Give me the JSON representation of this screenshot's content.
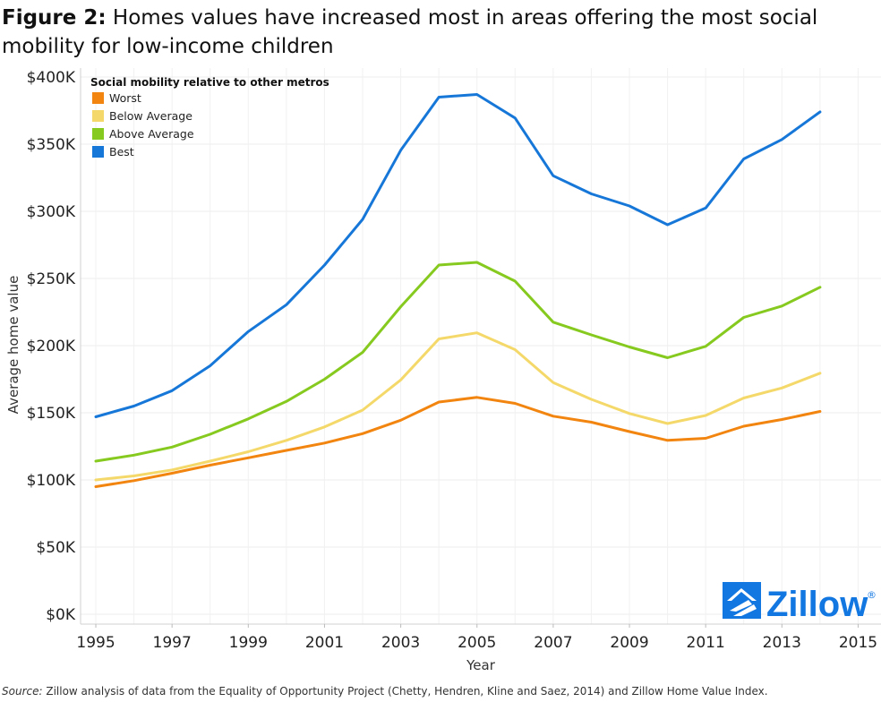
{
  "title": {
    "prefix": "Figure 2:",
    "text": "Homes values have increased most in areas offering the most social mobility for low-income children"
  },
  "source": {
    "label": "Source:",
    "text": "Zillow analysis of data from the Equality of Opportunity Project (Chetty, Hendren, Kline and Saez, 2014) and Zillow Home Value Index."
  },
  "logo": {
    "text": "Zillow",
    "mark": "®",
    "color": "#1277e1"
  },
  "chart_data": {
    "type": "line",
    "title": "Homes values have increased most in areas offering the most social mobility for low-income children",
    "xlabel": "Year",
    "ylabel": "Average home value",
    "xlim": [
      1994.6,
      2015.6
    ],
    "ylim": [
      0,
      400000
    ],
    "xticks": [
      1995,
      1997,
      1999,
      2001,
      2003,
      2005,
      2007,
      2009,
      2011,
      2013,
      2015
    ],
    "xtick_labels": [
      "1995",
      "1997",
      "1999",
      "2001",
      "2003",
      "2005",
      "2007",
      "2009",
      "2011",
      "2013",
      "2015"
    ],
    "yticks": [
      0,
      50000,
      100000,
      150000,
      200000,
      250000,
      300000,
      350000,
      400000
    ],
    "ytick_labels": [
      "$0K",
      "$50K",
      "$100K",
      "$150K",
      "$200K",
      "$250K",
      "$300K",
      "$350K",
      "$400K"
    ],
    "grid": true,
    "legend": {
      "title": "Social mobility relative to other metros",
      "position": "top-left"
    },
    "x": [
      1995,
      1996,
      1997,
      1998,
      1999,
      2000,
      2001,
      2002,
      2003,
      2004,
      2005,
      2006,
      2007,
      2008,
      2009,
      2010,
      2011,
      2012,
      2013,
      2014,
      2015
    ],
    "series": [
      {
        "name": "Worst",
        "color": "#f2850f",
        "values": [
          95000,
          99500,
          105000,
          111000,
          116500,
          122000,
          127500,
          134500,
          144500,
          158000,
          161500,
          157000,
          147500,
          143000,
          136000,
          129500,
          131000,
          140000,
          145000,
          151000,
          null
        ]
      },
      {
        "name": "Below Average",
        "color": "#f4d96a",
        "values": [
          100000,
          103000,
          107500,
          114000,
          121000,
          129500,
          139500,
          152000,
          174500,
          205000,
          209500,
          197000,
          172500,
          160000,
          149500,
          142000,
          148000,
          161000,
          168500,
          179500,
          null
        ]
      },
      {
        "name": "Above Average",
        "color": "#86c91f",
        "values": [
          114000,
          118500,
          124500,
          134000,
          145500,
          158500,
          175000,
          195000,
          229000,
          260000,
          262000,
          248000,
          217500,
          208000,
          199000,
          191000,
          199500,
          221000,
          229500,
          243500,
          null
        ]
      },
      {
        "name": "Best",
        "color": "#1677d8",
        "values": [
          147000,
          155000,
          166500,
          185000,
          210500,
          230500,
          260000,
          294000,
          345500,
          385000,
          387000,
          369500,
          326500,
          313000,
          304000,
          290000,
          302500,
          339000,
          353500,
          374000,
          null
        ]
      }
    ]
  }
}
